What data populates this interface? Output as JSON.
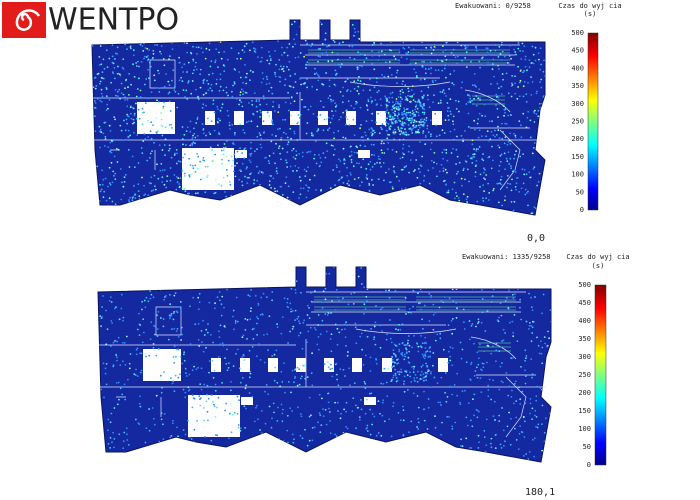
{
  "logo": "WENTPO",
  "panels": [
    {
      "evacuated": "Ewakuowani:  0/9258",
      "legend_title": "Czas do wyj cia",
      "legend_unit": "(s)",
      "legend_ticks": [
        500,
        450,
        400,
        350,
        300,
        250,
        200,
        150,
        100,
        50,
        0
      ],
      "time": "0,0"
    },
    {
      "evacuated": "Ewakuowani: 1335/9258",
      "legend_title": "Czas do wyj cia",
      "legend_unit": "(s)",
      "legend_ticks": [
        500,
        450,
        400,
        350,
        300,
        250,
        200,
        150,
        100,
        50,
        0
      ],
      "time": "180,1"
    }
  ]
}
